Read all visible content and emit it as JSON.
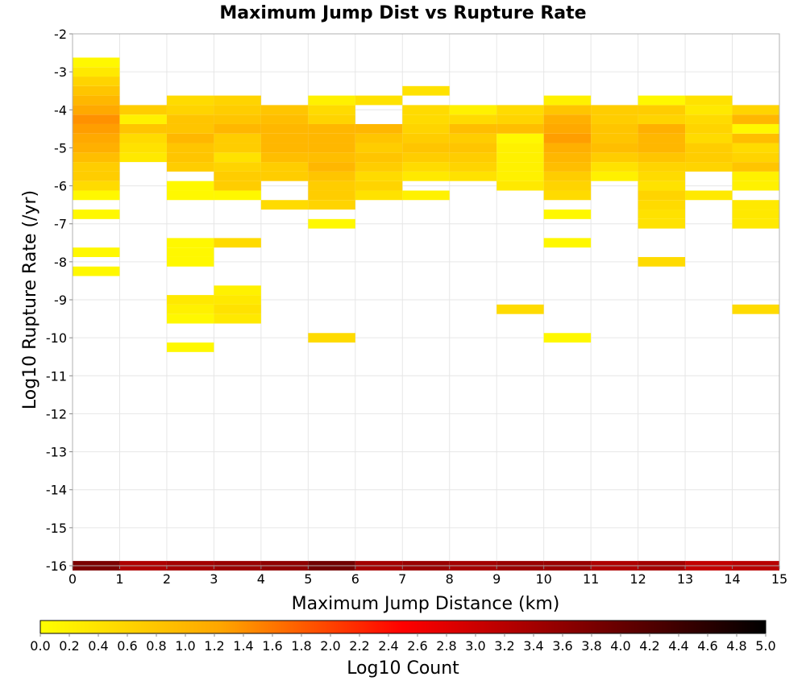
{
  "chart_data": {
    "type": "heatmap",
    "title": "Maximum Jump Dist vs Rupture Rate",
    "xlabel": "Maximum Jump Distance (km)",
    "ylabel": "Log10 Rupture Rate (/yr)",
    "xlim": [
      0,
      15
    ],
    "ylim": [
      -16,
      -2
    ],
    "x_ticks": [
      "0",
      "1",
      "2",
      "3",
      "4",
      "5",
      "6",
      "7",
      "8",
      "9",
      "10",
      "11",
      "12",
      "13",
      "14",
      "15"
    ],
    "y_ticks": [
      "-2",
      "-3",
      "-4",
      "-5",
      "-6",
      "-7",
      "-8",
      "-9",
      "-10",
      "-11",
      "-12",
      "-13",
      "-14",
      "-15",
      "-16"
    ],
    "x_bin_width": 1,
    "y_bin_height": 0.25,
    "grid": true,
    "colorbar": {
      "label": "Log10 Count",
      "range": [
        0,
        5
      ],
      "ticks": [
        "0.0",
        "0.2",
        "0.4",
        "0.6",
        "0.8",
        "1.0",
        "1.2",
        "1.4",
        "1.6",
        "1.8",
        "2.0",
        "2.2",
        "2.4",
        "2.6",
        "2.8",
        "3.0",
        "3.2",
        "3.4",
        "3.6",
        "3.8",
        "4.0",
        "4.2",
        "4.4",
        "4.6",
        "4.8",
        "5.0"
      ],
      "colors": [
        "#ffff00",
        "#ffa500",
        "#ff0000",
        "#800000",
        "#000000"
      ]
    },
    "series": [
      {
        "x_bin": 0,
        "columns": [
          [
            -16,
            3.8
          ],
          [
            -8.25,
            0.1
          ],
          [
            -7.75,
            0.1
          ],
          [
            -6.75,
            0.1
          ],
          [
            -6.25,
            0.1
          ],
          [
            -6,
            0.5
          ],
          [
            -5.75,
            0.7
          ],
          [
            -5.5,
            0.7
          ],
          [
            -5.25,
            0.9
          ],
          [
            -5,
            1.1
          ],
          [
            -4.75,
            1.2
          ],
          [
            -4.5,
            1.3
          ],
          [
            -4.25,
            1.4
          ],
          [
            -4,
            1.2
          ],
          [
            -3.75,
            1.0
          ],
          [
            -3.5,
            0.8
          ],
          [
            -3.25,
            0.6
          ],
          [
            -3,
            0.3
          ],
          [
            -2.75,
            0.1
          ]
        ]
      },
      {
        "x_bin": 1,
        "columns": [
          [
            -16,
            3.3
          ],
          [
            -5.25,
            0.3
          ],
          [
            -5,
            0.4
          ],
          [
            -4.75,
            0.5
          ],
          [
            -4.5,
            0.8
          ],
          [
            -4.25,
            0.2
          ],
          [
            -4,
            0.7
          ]
        ]
      },
      {
        "x_bin": 2,
        "columns": [
          [
            -16,
            3.4
          ],
          [
            -10.25,
            0.1
          ],
          [
            -9.5,
            0.1
          ],
          [
            -9.25,
            0.2
          ],
          [
            -9,
            0.3
          ],
          [
            -8,
            0.1
          ],
          [
            -7.75,
            0.1
          ],
          [
            -7.5,
            0.1
          ],
          [
            -6.25,
            0.1
          ],
          [
            -6,
            0.1
          ],
          [
            -5.5,
            0.7
          ],
          [
            -5.25,
            0.8
          ],
          [
            -5,
            0.8
          ],
          [
            -4.75,
            1.0
          ],
          [
            -4.5,
            0.8
          ],
          [
            -4.25,
            0.8
          ],
          [
            -4,
            0.6
          ],
          [
            -3.75,
            0.5
          ]
        ]
      },
      {
        "x_bin": 3,
        "columns": [
          [
            -16,
            3.5
          ],
          [
            -9.5,
            0.3
          ],
          [
            -9.25,
            0.4
          ],
          [
            -9,
            0.3
          ],
          [
            -8.75,
            0.2
          ],
          [
            -7.5,
            0.5
          ],
          [
            -6.25,
            0.1
          ],
          [
            -6,
            0.7
          ],
          [
            -5.75,
            0.7
          ],
          [
            -5.5,
            0.6
          ],
          [
            -5.25,
            0.4
          ],
          [
            -5,
            0.7
          ],
          [
            -4.75,
            0.7
          ],
          [
            -4.5,
            1.0
          ],
          [
            -4.25,
            0.8
          ],
          [
            -4,
            0.7
          ],
          [
            -3.75,
            0.6
          ]
        ]
      },
      {
        "x_bin": 4,
        "columns": [
          [
            -16,
            3.6
          ],
          [
            -6.5,
            0.5
          ],
          [
            -5.75,
            0.7
          ],
          [
            -5.5,
            0.7
          ],
          [
            -5.25,
            0.9
          ],
          [
            -5,
            1.0
          ],
          [
            -4.75,
            1.0
          ],
          [
            -4.5,
            1.0
          ],
          [
            -4.25,
            0.9
          ],
          [
            -4,
            0.8
          ]
        ]
      },
      {
        "x_bin": 5,
        "columns": [
          [
            -16,
            3.9
          ],
          [
            -10,
            0.5
          ],
          [
            -7,
            0.1
          ],
          [
            -6.5,
            0.6
          ],
          [
            -6.25,
            0.7
          ],
          [
            -6,
            0.7
          ],
          [
            -5.75,
            0.8
          ],
          [
            -5.5,
            1.0
          ],
          [
            -5.25,
            0.9
          ],
          [
            -5,
            1.0
          ],
          [
            -4.75,
            1.0
          ],
          [
            -4.5,
            1.0
          ],
          [
            -4.25,
            0.6
          ],
          [
            -4,
            0.5
          ],
          [
            -3.75,
            0.2
          ]
        ]
      },
      {
        "x_bin": 6,
        "columns": [
          [
            -16,
            3.4
          ],
          [
            -6.25,
            0.4
          ],
          [
            -6,
            0.6
          ],
          [
            -5.75,
            0.5
          ],
          [
            -5.5,
            0.7
          ],
          [
            -5.25,
            0.8
          ],
          [
            -5,
            0.7
          ],
          [
            -4.75,
            0.8
          ],
          [
            -4.5,
            1.0
          ],
          [
            -3.75,
            0.4
          ]
        ]
      },
      {
        "x_bin": 7,
        "columns": [
          [
            -16,
            3.5
          ],
          [
            -6.25,
            0.2
          ],
          [
            -5.75,
            0.3
          ],
          [
            -5.5,
            0.5
          ],
          [
            -5.25,
            0.7
          ],
          [
            -5,
            0.8
          ],
          [
            -4.75,
            0.7
          ],
          [
            -4.5,
            0.6
          ],
          [
            -4.25,
            0.5
          ],
          [
            -4,
            0.5
          ],
          [
            -3.5,
            0.4
          ]
        ]
      },
      {
        "x_bin": 8,
        "columns": [
          [
            -16,
            3.4
          ],
          [
            -5.75,
            0.4
          ],
          [
            -5.5,
            0.6
          ],
          [
            -5.25,
            0.7
          ],
          [
            -5,
            0.8
          ],
          [
            -4.75,
            0.7
          ],
          [
            -4.5,
            0.9
          ],
          [
            -4.25,
            0.5
          ],
          [
            -4,
            0.2
          ]
        ]
      },
      {
        "x_bin": 9,
        "columns": [
          [
            -16,
            3.5
          ],
          [
            -9.25,
            0.5
          ],
          [
            -6,
            0.3
          ],
          [
            -5.75,
            0.2
          ],
          [
            -5.5,
            0.2
          ],
          [
            -5.25,
            0.2
          ],
          [
            -5,
            0.2
          ],
          [
            -4.75,
            0.1
          ],
          [
            -4.5,
            0.9
          ],
          [
            -4.25,
            0.6
          ],
          [
            -4,
            0.5
          ]
        ]
      },
      {
        "x_bin": 10,
        "columns": [
          [
            -16,
            3.5
          ],
          [
            -10,
            0.1
          ],
          [
            -7.5,
            0.1
          ],
          [
            -6.75,
            0.1
          ],
          [
            -6.25,
            0.5
          ],
          [
            -6,
            0.6
          ],
          [
            -5.75,
            0.7
          ],
          [
            -5.5,
            0.9
          ],
          [
            -5.25,
            1.0
          ],
          [
            -5,
            1.1
          ],
          [
            -4.75,
            1.3
          ],
          [
            -4.5,
            1.2
          ],
          [
            -4.25,
            1.1
          ],
          [
            -4,
            0.8
          ],
          [
            -3.75,
            0.2
          ]
        ]
      },
      {
        "x_bin": 11,
        "columns": [
          [
            -16,
            3.3
          ],
          [
            -5.75,
            0.2
          ],
          [
            -5.5,
            0.4
          ],
          [
            -5.25,
            0.7
          ],
          [
            -5,
            0.9
          ],
          [
            -4.75,
            0.8
          ],
          [
            -4.5,
            0.8
          ],
          [
            -4.25,
            0.7
          ],
          [
            -4,
            0.7
          ]
        ]
      },
      {
        "x_bin": 12,
        "columns": [
          [
            -16,
            3.4
          ],
          [
            -8,
            0.5
          ],
          [
            -7,
            0.4
          ],
          [
            -6.75,
            0.4
          ],
          [
            -6.5,
            0.5
          ],
          [
            -6.25,
            0.6
          ],
          [
            -6,
            0.4
          ],
          [
            -5.75,
            0.5
          ],
          [
            -5.5,
            0.6
          ],
          [
            -5.25,
            0.8
          ],
          [
            -5,
            1.0
          ],
          [
            -4.75,
            1.0
          ],
          [
            -4.5,
            1.1
          ],
          [
            -4.25,
            0.6
          ],
          [
            -4,
            0.7
          ],
          [
            -3.75,
            0.1
          ]
        ]
      },
      {
        "x_bin": 13,
        "columns": [
          [
            -16,
            3.1
          ],
          [
            -6.25,
            0.3
          ],
          [
            -5.5,
            0.6
          ],
          [
            -5.25,
            0.7
          ],
          [
            -5,
            0.7
          ],
          [
            -4.75,
            0.5
          ],
          [
            -4.5,
            0.6
          ],
          [
            -4.25,
            0.5
          ],
          [
            -4,
            0.3
          ],
          [
            -3.75,
            0.4
          ]
        ]
      },
      {
        "x_bin": 14,
        "columns": [
          [
            -16,
            3.2
          ],
          [
            -9.25,
            0.5
          ],
          [
            -7,
            0.3
          ],
          [
            -6.75,
            0.3
          ],
          [
            -6.5,
            0.3
          ],
          [
            -6,
            0.2
          ],
          [
            -5.75,
            0.2
          ],
          [
            -5.5,
            0.8
          ],
          [
            -5.25,
            0.6
          ],
          [
            -5,
            0.5
          ],
          [
            -4.75,
            0.9
          ],
          [
            -4.5,
            0.1
          ],
          [
            -4.25,
            1.0
          ],
          [
            -4,
            0.6
          ]
        ]
      }
    ]
  }
}
